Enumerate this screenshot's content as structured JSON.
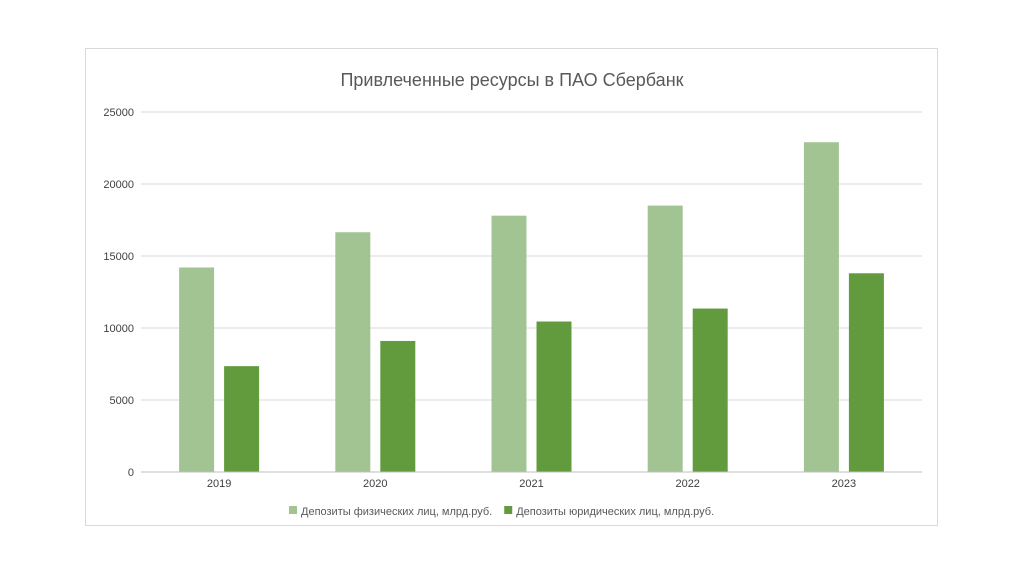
{
  "chart_data": {
    "type": "bar",
    "title": "Привлеченные ресурсы в ПАО Сбербанк",
    "categories": [
      "2019",
      "2020",
      "2021",
      "2022",
      "2023"
    ],
    "series": [
      {
        "name": "Депозиты физических лиц, млрд.руб.",
        "values": [
          14200,
          16650,
          17800,
          18500,
          22900
        ],
        "color": "#a2c493"
      },
      {
        "name": "Депозиты юридических лиц, млрд.руб.",
        "values": [
          7350,
          9100,
          10450,
          11350,
          13800
        ],
        "color": "#629b3e"
      }
    ],
    "ylim": [
      0,
      25000
    ],
    "yticks": [
      0,
      5000,
      10000,
      15000,
      20000,
      25000
    ],
    "grid": true,
    "legend_position": "bottom"
  }
}
